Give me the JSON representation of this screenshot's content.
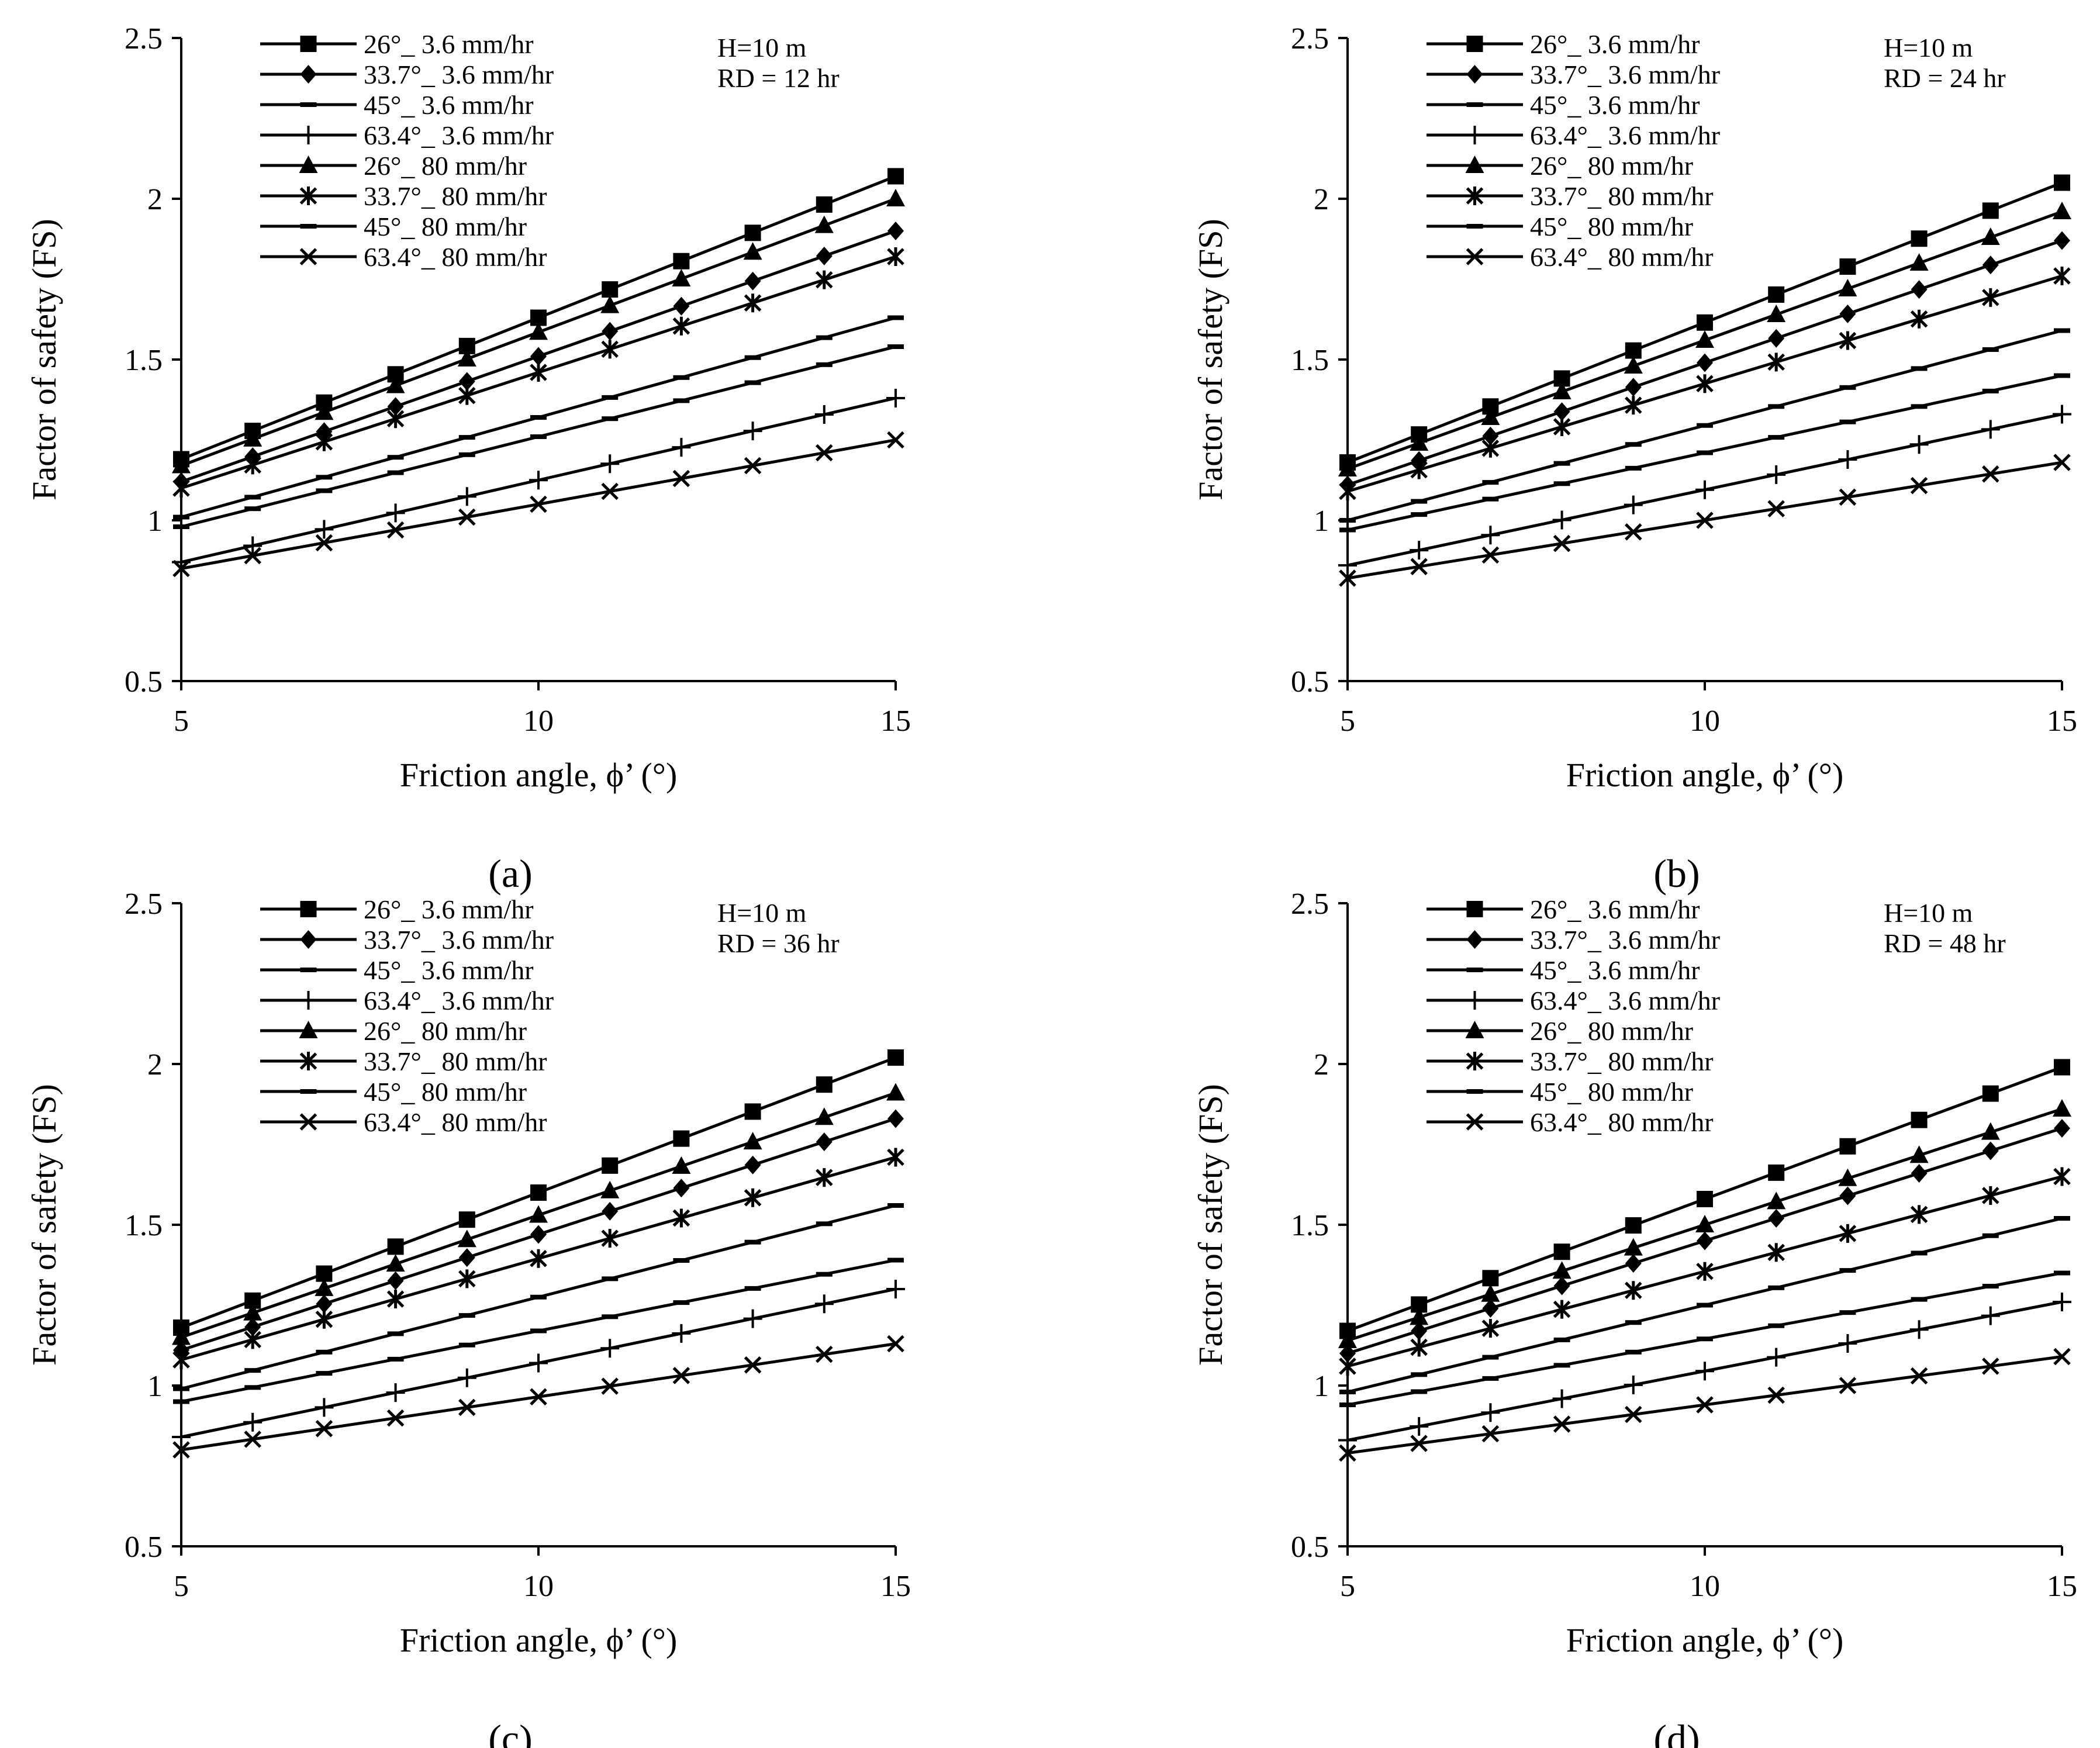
{
  "figure": {
    "series_names": [
      "26°_ 3.6 mm/hr",
      "33.7°_ 3.6 mm/hr",
      "45°_ 3.6 mm/hr",
      "63.4°_ 3.6 mm/hr",
      "26°_ 80 mm/hr",
      "33.7°_ 80 mm/hr",
      "45°_ 80 mm/hr",
      "63.4°_ 80 mm/hr"
    ],
    "marker_icons": [
      "square-icon",
      "diamond-icon",
      "dash-icon",
      "plus-icon",
      "triangle-icon",
      "asterisk-icon",
      "dash-icon",
      "cross-icon"
    ]
  },
  "chart_data": [
    {
      "type": "line",
      "panel_label": "(a)",
      "annotation_lines": [
        "H=10 m",
        "RD = 12 hr"
      ],
      "xlabel": "Friction angle, ϕ’ (°)",
      "ylabel": "Factor of safety  (FS)",
      "xlim": [
        5,
        15
      ],
      "ylim": [
        0.5,
        2.5
      ],
      "xticks": [
        "5",
        "10",
        "15"
      ],
      "yticks": [
        "0.5",
        "1",
        "1.5",
        "2",
        "2.5"
      ],
      "x": [
        5,
        6,
        7,
        8,
        9,
        10,
        11,
        12,
        13,
        14,
        15
      ],
      "series": [
        {
          "name": "26°_ 3.6 mm/hr",
          "start": 1.19,
          "end": 2.07
        },
        {
          "name": "33.7°_ 3.6 mm/hr",
          "start": 1.12,
          "end": 1.9
        },
        {
          "name": "45°_ 3.6 mm/hr",
          "start": 1.01,
          "end": 1.63
        },
        {
          "name": "63.4°_ 3.6 mm/hr",
          "start": 0.87,
          "end": 1.38
        },
        {
          "name": "26°_ 80 mm/hr",
          "start": 1.17,
          "end": 2.0
        },
        {
          "name": "33.7°_ 80 mm/hr",
          "start": 1.1,
          "end": 1.82
        },
        {
          "name": "45°_ 80 mm/hr",
          "start": 0.98,
          "end": 1.54
        },
        {
          "name": "63.4°_ 80 mm/hr",
          "start": 0.85,
          "end": 1.25
        }
      ]
    },
    {
      "type": "line",
      "panel_label": "(b)",
      "annotation_lines": [
        "H=10 m",
        "RD = 24 hr"
      ],
      "xlabel": "Friction angle, ϕ’ (°)",
      "ylabel": "Factor of safety  (FS)",
      "xlim": [
        5,
        15
      ],
      "ylim": [
        0.5,
        2.5
      ],
      "xticks": [
        "5",
        "10",
        "15"
      ],
      "yticks": [
        "0.5",
        "1",
        "1.5",
        "2",
        "2.5"
      ],
      "x": [
        5,
        6,
        7,
        8,
        9,
        10,
        11,
        12,
        13,
        14,
        15
      ],
      "series": [
        {
          "name": "26°_ 3.6 mm/hr",
          "start": 1.18,
          "end": 2.05
        },
        {
          "name": "33.7°_ 3.6 mm/hr",
          "start": 1.11,
          "end": 1.87
        },
        {
          "name": "45°_ 3.6 mm/hr",
          "start": 1.0,
          "end": 1.59
        },
        {
          "name": "63.4°_ 3.6 mm/hr",
          "start": 0.86,
          "end": 1.33
        },
        {
          "name": "26°_ 80 mm/hr",
          "start": 1.16,
          "end": 1.96
        },
        {
          "name": "33.7°_ 80 mm/hr",
          "start": 1.09,
          "end": 1.76
        },
        {
          "name": "45°_ 80 mm/hr",
          "start": 0.97,
          "end": 1.45
        },
        {
          "name": "63.4°_ 80 mm/hr",
          "start": 0.82,
          "end": 1.18
        }
      ]
    },
    {
      "type": "line",
      "panel_label": "(c)",
      "annotation_lines": [
        "H=10 m",
        "RD = 36 hr"
      ],
      "xlabel": "Friction angle, ϕ’ (°)",
      "ylabel": "Factor of safety  (FS)",
      "xlim": [
        5,
        15
      ],
      "ylim": [
        0.5,
        2.5
      ],
      "xticks": [
        "5",
        "10",
        "15"
      ],
      "yticks": [
        "0.5",
        "1",
        "1.5",
        "2",
        "2.5"
      ],
      "x": [
        5,
        6,
        7,
        8,
        9,
        10,
        11,
        12,
        13,
        14,
        15
      ],
      "series": [
        {
          "name": "26°_ 3.6 mm/hr",
          "start": 1.18,
          "end": 2.02
        },
        {
          "name": "33.7°_ 3.6 mm/hr",
          "start": 1.11,
          "end": 1.83
        },
        {
          "name": "45°_ 3.6 mm/hr",
          "start": 0.99,
          "end": 1.56
        },
        {
          "name": "63.4°_ 3.6 mm/hr",
          "start": 0.84,
          "end": 1.3
        },
        {
          "name": "26°_ 80 mm/hr",
          "start": 1.15,
          "end": 1.91
        },
        {
          "name": "33.7°_ 80 mm/hr",
          "start": 1.08,
          "end": 1.71
        },
        {
          "name": "45°_ 80 mm/hr",
          "start": 0.95,
          "end": 1.39
        },
        {
          "name": "63.4°_ 80 mm/hr",
          "start": 0.8,
          "end": 1.13
        }
      ]
    },
    {
      "type": "line",
      "panel_label": "(d)",
      "annotation_lines": [
        "H=10 m",
        "RD = 48 hr"
      ],
      "xlabel": "Friction angle, ϕ’ (°)",
      "ylabel": "Factor of safety  (FS)",
      "xlim": [
        5,
        15
      ],
      "ylim": [
        0.5,
        2.5
      ],
      "xticks": [
        "5",
        "10",
        "15"
      ],
      "yticks": [
        "0.5",
        "1",
        "1.5",
        "2",
        "2.5"
      ],
      "x": [
        5,
        6,
        7,
        8,
        9,
        10,
        11,
        12,
        13,
        14,
        15
      ],
      "series": [
        {
          "name": "26°_ 3.6 mm/hr",
          "start": 1.17,
          "end": 1.99
        },
        {
          "name": "33.7°_ 3.6 mm/hr",
          "start": 1.1,
          "end": 1.8
        },
        {
          "name": "45°_ 3.6 mm/hr",
          "start": 0.98,
          "end": 1.52
        },
        {
          "name": "63.4°_ 3.6 mm/hr",
          "start": 0.83,
          "end": 1.26
        },
        {
          "name": "26°_ 80 mm/hr",
          "start": 1.14,
          "end": 1.86
        },
        {
          "name": "33.7°_ 80 mm/hr",
          "start": 1.06,
          "end": 1.65
        },
        {
          "name": "45°_ 80 mm/hr",
          "start": 0.94,
          "end": 1.35
        },
        {
          "name": "63.4°_ 80 mm/hr",
          "start": 0.79,
          "end": 1.09
        }
      ]
    }
  ]
}
